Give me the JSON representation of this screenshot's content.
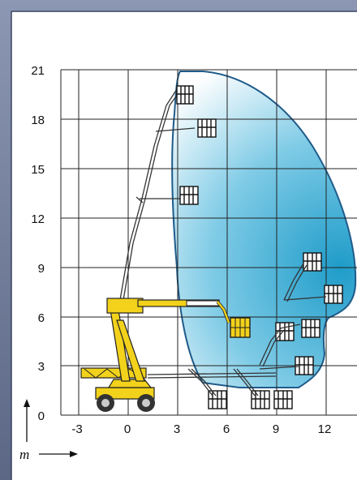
{
  "diagram": {
    "y_axis": {
      "ticks": [
        "21",
        "18",
        "15",
        "12",
        "9",
        "6",
        "3",
        "0"
      ],
      "min": 0,
      "max": 21,
      "step": 3
    },
    "x_axis": {
      "ticks": [
        "-3",
        "0",
        "3",
        "6",
        "9",
        "12"
      ],
      "min": -3,
      "max": 12,
      "step": 3
    },
    "unit_label": "m",
    "colors": {
      "frame": "#5a6684",
      "envelope_edge": "#1f5b8a",
      "envelope_fill": "#35aed3",
      "lift_yellow": "#f2d21b",
      "grid": "#222222"
    },
    "icons": [
      "arrow-up-icon",
      "arrow-right-icon",
      "aerial-lift-icon",
      "platform-basket-icon"
    ]
  }
}
